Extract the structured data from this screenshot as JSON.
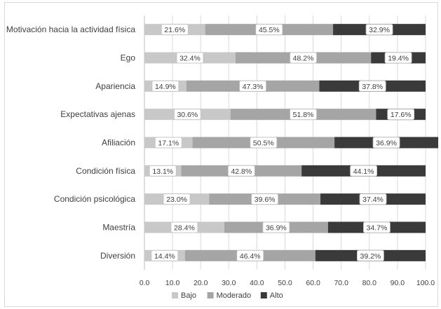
{
  "chart_data": {
    "type": "bar",
    "orientation": "horizontal",
    "stacked": true,
    "title": "",
    "xlabel": "",
    "ylabel": "",
    "xlim": [
      0,
      100
    ],
    "xticks": [
      "0.0",
      "10.0",
      "20.0",
      "30.0",
      "40.0",
      "50.0",
      "60.0",
      "70.0",
      "80.0",
      "90.0",
      "100.0"
    ],
    "grid": true,
    "legend_position": "bottom",
    "categories": [
      "Motivación hacia la actividad física",
      "Ego",
      "Apariencia",
      "Expectativas ajenas",
      "Afiliación",
      "Condición física",
      "Condición psicológica",
      "Maestría",
      "Diversión"
    ],
    "series": [
      {
        "name": "Bajo",
        "color": "#c8c8c8",
        "values": [
          21.6,
          32.4,
          14.9,
          30.6,
          17.1,
          13.1,
          23.0,
          28.4,
          14.4
        ],
        "labels": [
          "21.6%",
          "32.4%",
          "14.9%",
          "30.6%",
          "17.1%",
          "13.1%",
          "23.0%",
          "28.4%",
          "14.4%"
        ]
      },
      {
        "name": "Moderado",
        "color": "#a5a5a5",
        "values": [
          45.5,
          48.2,
          47.3,
          51.8,
          50.5,
          42.8,
          39.6,
          36.9,
          46.4
        ],
        "labels": [
          "45.5%",
          "48.2%",
          "47.3%",
          "51.8%",
          "50.5%",
          "42.8%",
          "39.6%",
          "36.9%",
          "46.4%"
        ]
      },
      {
        "name": "Alto",
        "color": "#3a3a3a",
        "values": [
          32.9,
          19.4,
          37.8,
          17.6,
          36.9,
          44.1,
          37.4,
          34.7,
          39.2
        ],
        "labels": [
          "32.9%",
          "19.4%",
          "37.8%",
          "17.6%",
          "36.9%",
          "44.1%",
          "37.4%",
          "34.7%",
          "39.2%"
        ]
      }
    ]
  }
}
